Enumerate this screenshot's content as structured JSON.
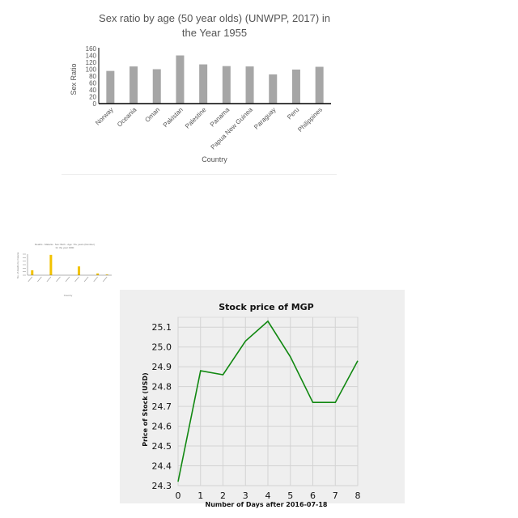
{
  "chart_data": [
    {
      "type": "bar",
      "title_lines": [
        "Sex ratio by age (50 year olds) (UNWPP, 2017) in",
        "the Year 1955"
      ],
      "xlabel": "Country",
      "ylabel": "Sex Ratio",
      "categories": [
        "Norway",
        "Oceania",
        "Oman",
        "Pakistan",
        "Palestine",
        "Panama",
        "Papua New Guinea",
        "Paraguay",
        "Peru",
        "Philippines"
      ],
      "values": [
        95,
        108,
        100,
        140,
        114,
        109,
        108,
        85,
        99,
        107
      ],
      "ylim": [
        0,
        160
      ],
      "yticks": [
        0,
        20,
        40,
        60,
        80,
        100,
        120,
        140,
        160
      ],
      "bar_color": "#a6a6a6",
      "grid": false,
      "legend": "none"
    },
    {
      "type": "bar",
      "title_lines": [
        "Deaths - Malaria - Sex: Both - Age: 70+ years (Number)",
        "for the year 1990"
      ],
      "xlabel": "Country",
      "ylabel": "No. of deaths by malaria",
      "categories": [
        "c1",
        "c2",
        "c3",
        "c4",
        "c5",
        "c6",
        "c7",
        "c8",
        "c9"
      ],
      "values": [
        14,
        0,
        58,
        0,
        0,
        25,
        0,
        5,
        2
      ],
      "ylim": [
        0,
        60
      ],
      "bar_color": "#f2c200",
      "grid": false,
      "legend": "none"
    },
    {
      "type": "line",
      "title": "Stock price of MGP",
      "xlabel": "Number of Days after 2016-07-18",
      "ylabel": "Price of Stock (USD)",
      "x": [
        0,
        1,
        2,
        3,
        4,
        5,
        6,
        7,
        8
      ],
      "y": [
        24.32,
        24.88,
        24.86,
        25.03,
        25.13,
        24.95,
        24.72,
        24.72,
        24.93
      ],
      "xlim": [
        0,
        8
      ],
      "ylim": [
        24.3,
        25.15
      ],
      "yticks": [
        24.3,
        24.4,
        24.5,
        24.6,
        24.7,
        24.8,
        24.9,
        25.0,
        25.1
      ],
      "ytick_labels": [
        "24.3",
        "24.4",
        "24.5",
        "24.6",
        "24.7",
        "24.8",
        "24.9",
        "25.0",
        "25.1"
      ],
      "line_color": "#118811",
      "background": "#efefef",
      "grid": true,
      "legend": "none"
    }
  ]
}
